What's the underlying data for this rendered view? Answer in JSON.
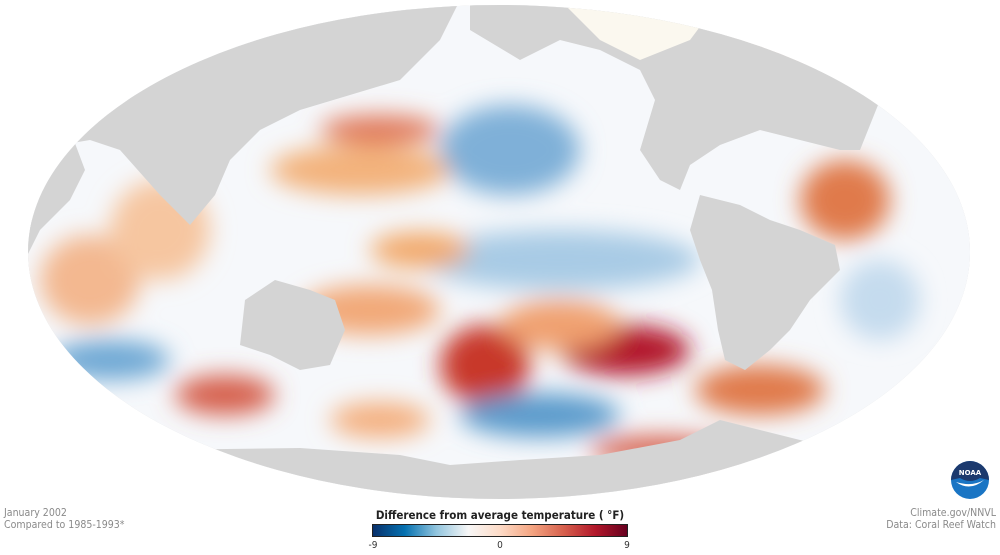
{
  "caption_left": {
    "line1": "January 2002",
    "line2": "Compared to 1985-1993*"
  },
  "caption_right": {
    "line1": "Climate.gov/NNVL",
    "line2": "Data: Coral Reef Watch"
  },
  "legend": {
    "title": "Difference from average temperature ( °F)",
    "min_label": "-9",
    "mid_label": "0",
    "max_label": "9",
    "colors": [
      "#08306b",
      "#0571b0",
      "#92c5de",
      "#f7f7f7",
      "#fddbc7",
      "#f4a582",
      "#d6604d",
      "#b2182b",
      "#67001f"
    ]
  },
  "map": {
    "projection": "Mollweide, Pacific-centered",
    "land_color": "#d4d4d4"
  },
  "logo": {
    "text": "NOAA"
  }
}
